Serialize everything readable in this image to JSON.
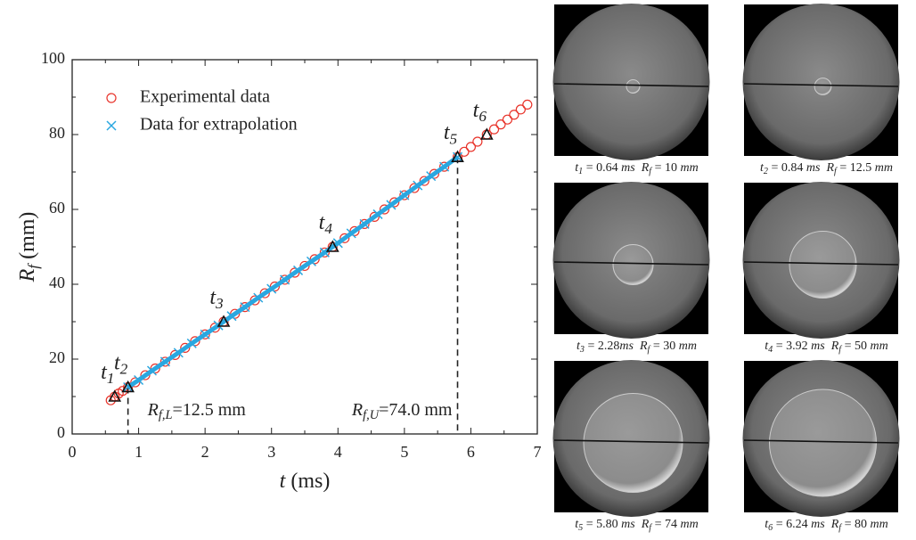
{
  "chart_data": {
    "type": "scatter",
    "xlabel": [
      [
        "t",
        "i"
      ],
      [
        " (ms)",
        ""
      ]
    ],
    "ylabel": [
      [
        "R",
        "i"
      ],
      [
        "f",
        "sub"
      ],
      [
        " (mm)",
        ""
      ]
    ],
    "xlim": [
      0,
      7
    ],
    "xticks": [
      0,
      1,
      2,
      3,
      4,
      5,
      6,
      7
    ],
    "ylim": [
      0,
      100
    ],
    "yticks": [
      0,
      20,
      40,
      60,
      80,
      100
    ],
    "legend": "upper left",
    "series": [
      {
        "name": "Experimental data",
        "marker": "circle",
        "color": "#e8332a",
        "x": [
          0.58,
          0.64,
          0.7,
          0.76,
          0.84,
          0.95,
          1.1,
          1.25,
          1.4,
          1.55,
          1.7,
          1.85,
          2.0,
          2.15,
          2.28,
          2.45,
          2.6,
          2.75,
          2.9,
          3.05,
          3.2,
          3.35,
          3.5,
          3.65,
          3.8,
          3.92,
          4.1,
          4.25,
          4.4,
          4.55,
          4.7,
          4.85,
          5.0,
          5.15,
          5.3,
          5.45,
          5.6,
          5.8,
          5.9,
          6.0,
          6.1,
          6.24,
          6.35,
          6.45,
          6.55,
          6.65,
          6.75,
          6.85
        ],
        "values": [
          9,
          10,
          10.8,
          11.5,
          12.5,
          13.8,
          15.7,
          17.5,
          19.3,
          21.1,
          23,
          24.8,
          26.6,
          28.4,
          30,
          32.1,
          33.9,
          35.7,
          37.6,
          39.4,
          41.2,
          43.1,
          44.9,
          46.7,
          48.5,
          50,
          52.3,
          54.2,
          56.1,
          58,
          60,
          61.9,
          63.8,
          65.7,
          67.6,
          69.5,
          71.4,
          74,
          75.4,
          76.7,
          78.1,
          80,
          81.4,
          82.7,
          84,
          85.3,
          86.7,
          88
        ]
      },
      {
        "name": "Data for extrapolation",
        "marker": "cross",
        "color": "#2aa7e0",
        "x": [
          0.84,
          1.0,
          1.2,
          1.4,
          1.6,
          1.8,
          2.0,
          2.2,
          2.4,
          2.6,
          2.8,
          3.0,
          3.2,
          3.4,
          3.6,
          3.8,
          4.0,
          4.2,
          4.4,
          4.6,
          4.8,
          5.0,
          5.2,
          5.4,
          5.6,
          5.8
        ],
        "values": [
          12.5,
          14.4,
          16.9,
          19.3,
          21.7,
          24.2,
          26.6,
          29.0,
          31.5,
          33.9,
          36.4,
          38.8,
          41.2,
          43.7,
          46.1,
          48.5,
          51.0,
          53.6,
          56.1,
          58.7,
          61.2,
          63.8,
          66.4,
          68.9,
          71.4,
          74
        ]
      }
    ],
    "annotations": [
      {
        "x": 0.64,
        "y": 10,
        "label": [
          [
            "t",
            "i"
          ],
          [
            "1",
            "sub"
          ]
        ]
      },
      {
        "x": 0.84,
        "y": 12.5,
        "label": [
          [
            "t",
            "i"
          ],
          [
            "2",
            "sub"
          ]
        ]
      },
      {
        "x": 2.28,
        "y": 30,
        "label": [
          [
            "t",
            "i"
          ],
          [
            "3",
            "sub"
          ]
        ]
      },
      {
        "x": 3.92,
        "y": 50,
        "label": [
          [
            "t",
            "i"
          ],
          [
            "4",
            "sub"
          ]
        ]
      },
      {
        "x": 5.8,
        "y": 74,
        "label": [
          [
            "t",
            "i"
          ],
          [
            "5",
            "sub"
          ]
        ]
      },
      {
        "x": 6.24,
        "y": 80,
        "label": [
          [
            "t",
            "i"
          ],
          [
            "6",
            "sub"
          ]
        ]
      }
    ],
    "reference_lines": [
      {
        "x": 0.84,
        "y": 12.5,
        "label_side": "right",
        "label": [
          [
            "R",
            "i"
          ],
          [
            "f,L",
            "sub"
          ],
          [
            "=12.5 mm",
            ""
          ]
        ]
      },
      {
        "x": 5.8,
        "y": 74,
        "label_side": "left",
        "label": [
          [
            "R",
            "i"
          ],
          [
            "f,U",
            "sub"
          ],
          [
            "=74.0 mm",
            ""
          ]
        ]
      }
    ]
  },
  "images": [
    {
      "R_f": 10,
      "caption": [
        [
          "t",
          "i"
        ],
        [
          "1",
          "sub"
        ],
        [
          " = 0.64 ",
          ""
        ],
        [
          "ms",
          "i"
        ],
        [
          "  R",
          "i"
        ],
        [
          "f",
          "sub"
        ],
        [
          " = 10 ",
          ""
        ],
        [
          "mm",
          "i"
        ]
      ]
    },
    {
      "R_f": 12.5,
      "caption": [
        [
          "t",
          "i"
        ],
        [
          "2",
          "sub"
        ],
        [
          " = 0.84 ",
          ""
        ],
        [
          "ms",
          "i"
        ],
        [
          "  R",
          "i"
        ],
        [
          "f",
          "sub"
        ],
        [
          " = 12.5 ",
          ""
        ],
        [
          "mm",
          "i"
        ]
      ]
    },
    {
      "R_f": 30,
      "caption": [
        [
          "t",
          "i"
        ],
        [
          "3",
          "sub"
        ],
        [
          " = 2.28",
          ""
        ],
        [
          "ms",
          "i"
        ],
        [
          "  R",
          "i"
        ],
        [
          "f",
          "sub"
        ],
        [
          " = 30 ",
          ""
        ],
        [
          "mm",
          "i"
        ]
      ]
    },
    {
      "R_f": 50,
      "caption": [
        [
          "t",
          "i"
        ],
        [
          "4",
          "sub"
        ],
        [
          " = 3.92 ",
          ""
        ],
        [
          "ms",
          "i"
        ],
        [
          "  R",
          "i"
        ],
        [
          "f",
          "sub"
        ],
        [
          " = 50 ",
          ""
        ],
        [
          "mm",
          "i"
        ]
      ]
    },
    {
      "R_f": 74,
      "caption": [
        [
          "t",
          "i"
        ],
        [
          "5",
          "sub"
        ],
        [
          " = 5.80 ",
          ""
        ],
        [
          "ms",
          "i"
        ],
        [
          "  R",
          "i"
        ],
        [
          "f",
          "sub"
        ],
        [
          " = 74 ",
          ""
        ],
        [
          "mm",
          "i"
        ]
      ]
    },
    {
      "R_f": 80,
      "caption": [
        [
          "t",
          "i"
        ],
        [
          "6",
          "sub"
        ],
        [
          " = 6.24 ",
          ""
        ],
        [
          "ms",
          "i"
        ],
        [
          "  R",
          "i"
        ],
        [
          "f",
          "sub"
        ],
        [
          " = 80 ",
          ""
        ],
        [
          "mm",
          "i"
        ]
      ]
    }
  ]
}
